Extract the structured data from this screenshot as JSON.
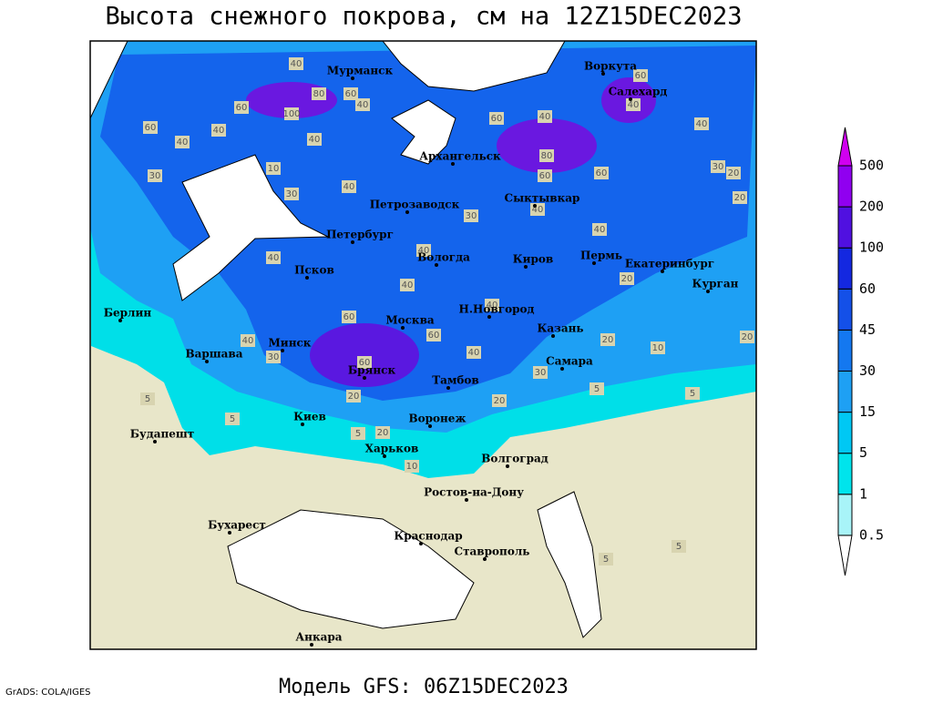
{
  "title": "Высота снежного покрова, см на 12Z15DEC2023",
  "footer": "Модель GFS: 06Z15DEC2023",
  "credit": "GrADS: COLA/IGES",
  "cities": [
    "Мурманск",
    "Воркута",
    "Салехард",
    "Архангельск",
    "Сыктывкар",
    "Петрозаводск",
    "Петербург",
    "Вологда",
    "Киров",
    "Пермь",
    "Екатеринбург",
    "Курган",
    "Псков",
    "Н.Новгород",
    "Казань",
    "Москва",
    "Минск",
    "Берлин",
    "Варшава",
    "Брянск",
    "Тамбов",
    "Самара",
    "Киев",
    "Воронеж",
    "Будапешт",
    "Харьков",
    "Волгоград",
    "Ростов-на-Дону",
    "Бухарест",
    "Краснодар",
    "Ставрополь",
    "Анкара"
  ],
  "contour_labels": [
    40,
    80,
    60,
    100,
    60,
    60,
    40,
    40,
    40,
    30,
    10,
    30,
    40,
    40,
    60,
    40,
    80,
    60,
    60,
    40,
    40,
    60,
    30,
    20,
    20,
    30,
    40,
    40,
    40,
    40,
    40,
    40,
    60,
    60,
    40,
    30,
    40,
    60,
    20,
    20,
    30,
    20,
    10,
    20,
    20,
    5,
    5,
    5,
    5,
    5,
    20,
    10,
    5,
    5
  ],
  "colorbar": {
    "levels": [
      0.5,
      1,
      5,
      15,
      30,
      45,
      60,
      100,
      200,
      500
    ],
    "colors": [
      "#ffffff",
      "#a8f4f8",
      "#00e4ec",
      "#00c8f4",
      "#1ea0f4",
      "#1478f0",
      "#1450e8",
      "#1428e0",
      "#5010e0",
      "#9000f0",
      "#d000f0"
    ]
  }
}
